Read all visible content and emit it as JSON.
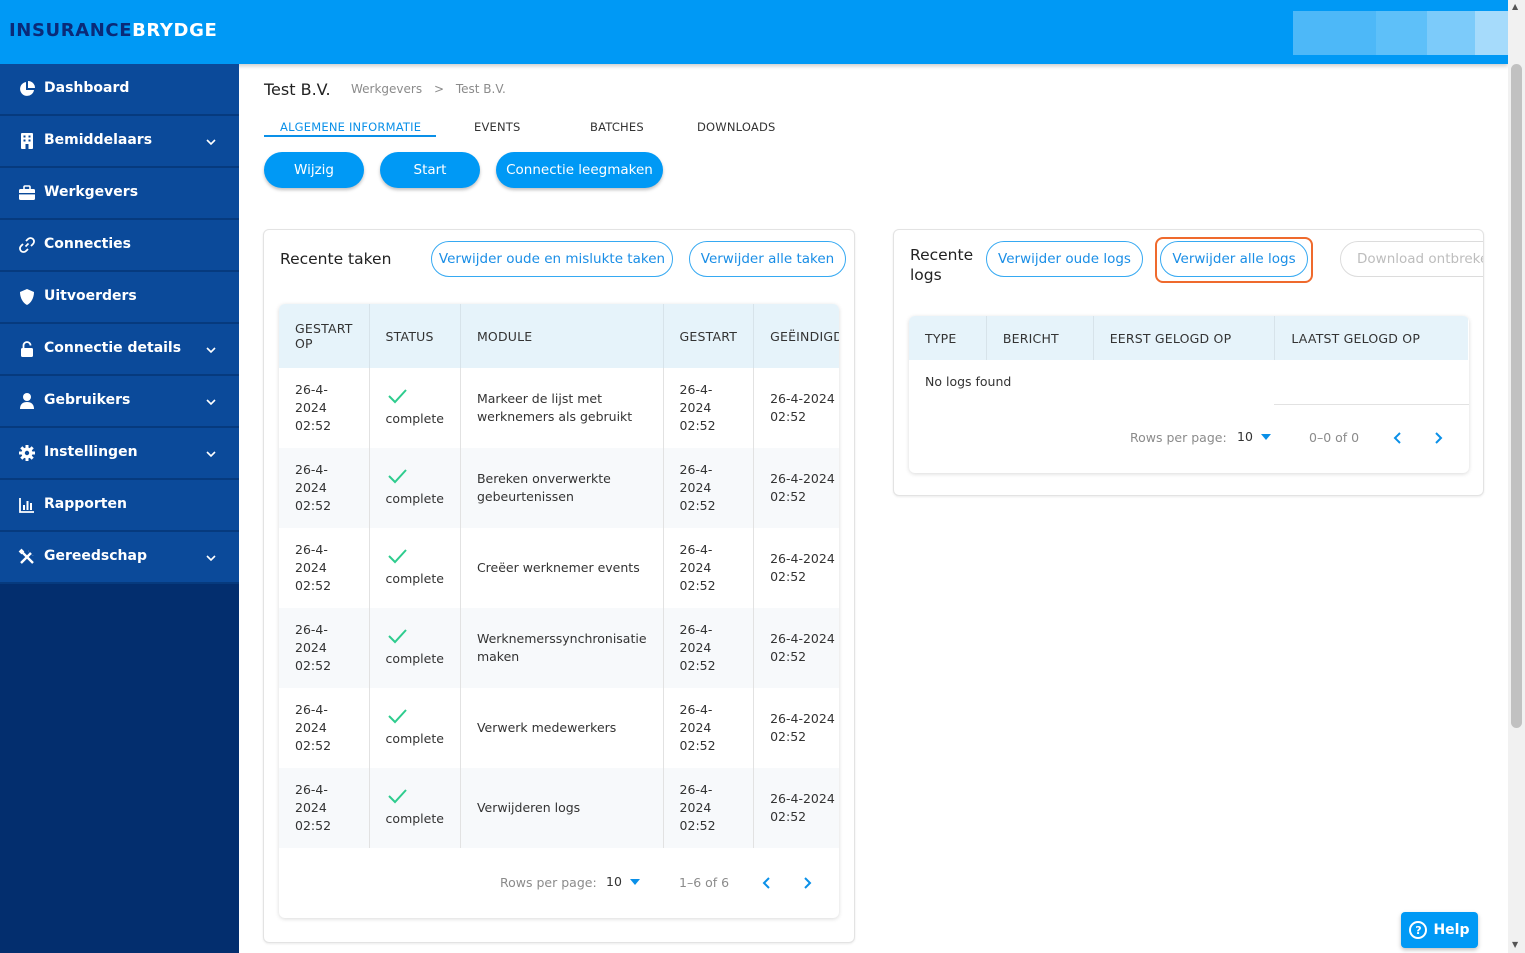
{
  "brand": {
    "part1": "INSURANCE",
    "part2": "BRYDGE"
  },
  "sidebar": {
    "items": [
      {
        "label": "Dashboard",
        "icon": "dashboard-icon",
        "expandable": false
      },
      {
        "label": "Bemiddelaars",
        "icon": "building-icon",
        "expandable": true
      },
      {
        "label": "Werkgevers",
        "icon": "briefcase-icon",
        "expandable": false
      },
      {
        "label": "Connecties",
        "icon": "link-icon",
        "expandable": false
      },
      {
        "label": "Uitvoerders",
        "icon": "shield-icon",
        "expandable": false
      },
      {
        "label": "Connectie details",
        "icon": "lock-icon",
        "expandable": true
      },
      {
        "label": "Gebruikers",
        "icon": "user-icon",
        "expandable": true
      },
      {
        "label": "Instellingen",
        "icon": "gear-icon",
        "expandable": true
      },
      {
        "label": "Rapporten",
        "icon": "bar-chart-icon",
        "expandable": false
      },
      {
        "label": "Gereedschap",
        "icon": "tools-icon",
        "expandable": true
      }
    ]
  },
  "page": {
    "title": "Test B.V.",
    "breadcrumb": [
      "Werkgevers",
      ">",
      "Test B.V."
    ]
  },
  "tabs": [
    "ALGEMENE INFORMATIE",
    "EVENTS",
    "BATCHES",
    "DOWNLOADS"
  ],
  "actions": {
    "edit": "Wijzig",
    "start": "Start",
    "clear": "Connectie leegmaken"
  },
  "tasks": {
    "title": "Recente taken",
    "delete_old_failed": "Verwijder oude en mislukte taken",
    "delete_all": "Verwijder alle taken",
    "headers": {
      "started_on_1": "GESTART",
      "started_on_2": "OP",
      "status": "STATUS",
      "module": "MODULE",
      "started": "GESTART",
      "ended": "GEËINDIGD"
    },
    "rows": [
      {
        "started_on": [
          "26-4-",
          "2024",
          "02:52"
        ],
        "status": "complete",
        "module": [
          "Markeer de lijst met",
          "werknemers als gebruikt"
        ],
        "started": [
          "26-4-",
          "2024",
          "02:52"
        ],
        "ended": [
          "26-4-2024",
          "02:52"
        ]
      },
      {
        "started_on": [
          "26-4-",
          "2024",
          "02:52"
        ],
        "status": "complete",
        "module": [
          "Bereken onverwerkte",
          "gebeurtenissen"
        ],
        "started": [
          "26-4-",
          "2024",
          "02:52"
        ],
        "ended": [
          "26-4-2024",
          "02:52"
        ]
      },
      {
        "started_on": [
          "26-4-",
          "2024",
          "02:52"
        ],
        "status": "complete",
        "module": [
          "Creëer werknemer events"
        ],
        "started": [
          "26-4-",
          "2024",
          "02:52"
        ],
        "ended": [
          "26-4-2024",
          "02:52"
        ]
      },
      {
        "started_on": [
          "26-4-",
          "2024",
          "02:52"
        ],
        "status": "complete",
        "module": [
          "Werknemerssynchronisatie",
          "maken"
        ],
        "started": [
          "26-4-",
          "2024",
          "02:52"
        ],
        "ended": [
          "26-4-2024",
          "02:52"
        ]
      },
      {
        "started_on": [
          "26-4-",
          "2024",
          "02:52"
        ],
        "status": "complete",
        "module": [
          "Verwerk medewerkers"
        ],
        "started": [
          "26-4-",
          "2024",
          "02:52"
        ],
        "ended": [
          "26-4-2024",
          "02:52"
        ]
      },
      {
        "started_on": [
          "26-4-",
          "2024",
          "02:52"
        ],
        "status": "complete",
        "module": [
          "Verwijderen logs"
        ],
        "started": [
          "26-4-",
          "2024",
          "02:52"
        ],
        "ended": [
          "26-4-2024",
          "02:52"
        ]
      }
    ],
    "pagination": {
      "rows_label": "Rows per page:",
      "rows_value": "10",
      "range": "1–6 of 6"
    }
  },
  "logs": {
    "title_1": "Recente",
    "title_2": "logs",
    "delete_old": "Verwijder oude logs",
    "delete_all": "Verwijder alle logs",
    "download_missing": "Download ontbreken",
    "headers": [
      "TYPE",
      "BERICHT",
      "EERST GELOGD OP",
      "LAATST GELOGD OP"
    ],
    "empty": "No logs found",
    "pagination": {
      "rows_label": "Rows per page:",
      "rows_value": "10",
      "range": "0–0 of 0"
    }
  },
  "help": {
    "label": "Help"
  },
  "colors": {
    "header": "#0099f5",
    "sidebar": "#032e6e",
    "nav_item": "#0b4a9a",
    "accent": "#0a90e8",
    "success": "#2ecc8e",
    "highlight": "#ef6a2d"
  }
}
